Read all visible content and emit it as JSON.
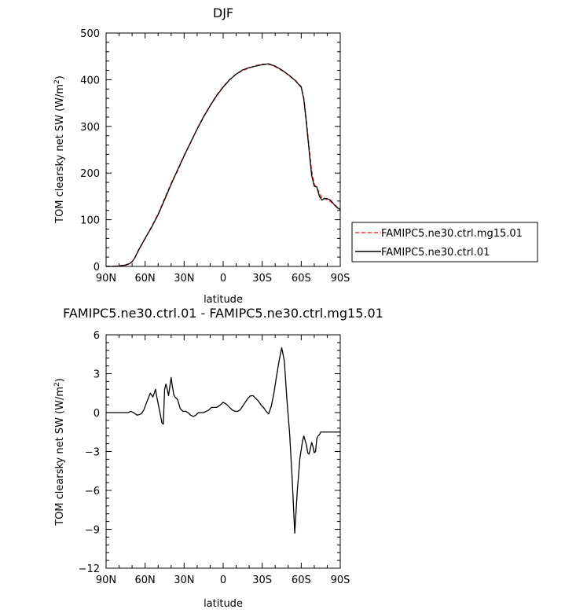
{
  "colors": {
    "ctrl_mg15": "#e8382c",
    "ctrl": "#000000"
  },
  "chart_data": [
    {
      "type": "line",
      "title": "DJF",
      "xlabel": "latitude",
      "ylabel": "TOM clearsky net SW (W/m",
      "ylabel_sup": "2",
      "ylabel_close": ")",
      "xlim": [
        90,
        -90
      ],
      "ylim": [
        0,
        500
      ],
      "xticks": [
        90,
        60,
        30,
        0,
        -30,
        -60,
        -90
      ],
      "xtick_labels": [
        "90N",
        "60N",
        "30N",
        "0",
        "30S",
        "60S",
        "90S"
      ],
      "yticks": [
        0,
        100,
        200,
        300,
        400,
        500
      ],
      "ytick_labels": [
        "0",
        "100",
        "200",
        "300",
        "400",
        "500"
      ],
      "legend": "right",
      "series": [
        {
          "name": "FAMIPC5.ne30.ctrl.mg15.01",
          "style": "dashed",
          "x": [
            90,
            85,
            80,
            75,
            72,
            70,
            68,
            65,
            62,
            60,
            55,
            50,
            45,
            40,
            35,
            30,
            25,
            20,
            15,
            10,
            5,
            0,
            -5,
            -10,
            -15,
            -20,
            -25,
            -30,
            -35,
            -40,
            -45,
            -50,
            -55,
            -60,
            -62,
            -64,
            -66,
            -68,
            -70,
            -72,
            -74,
            -76,
            -78,
            -80,
            -82,
            -84,
            -86,
            -88,
            -90
          ],
          "y": [
            0,
            0,
            1,
            3,
            6,
            10,
            18,
            35,
            50,
            60,
            85,
            112,
            145,
            178,
            205,
            238,
            265,
            295,
            320,
            345,
            367,
            385,
            400,
            412,
            420,
            425,
            430,
            433,
            433,
            428,
            420,
            410,
            400,
            385,
            360,
            310,
            255,
            205,
            176,
            168,
            158,
            145,
            145,
            143,
            140,
            136,
            131,
            127,
            124
          ]
        },
        {
          "name": "FAMIPC5.ne30.ctrl.01",
          "style": "solid",
          "x": [
            90,
            85,
            80,
            75,
            72,
            70,
            68,
            65,
            62,
            60,
            55,
            50,
            45,
            40,
            35,
            30,
            25,
            20,
            15,
            10,
            5,
            0,
            -5,
            -10,
            -15,
            -20,
            -25,
            -30,
            -35,
            -40,
            -45,
            -50,
            -55,
            -60,
            -62,
            -64,
            -66,
            -68,
            -70,
            -72,
            -74,
            -76,
            -78,
            -80,
            -82,
            -84,
            -86,
            -88,
            -90
          ],
          "y": [
            0,
            0,
            1,
            3,
            6,
            10,
            18,
            35,
            50,
            60,
            84,
            111,
            143,
            176,
            207,
            237,
            266,
            294,
            321,
            344,
            366,
            384,
            400,
            412,
            421,
            426,
            429,
            432,
            434,
            429,
            421,
            411,
            399,
            384,
            358,
            307,
            250,
            195,
            172,
            170,
            150,
            142,
            146,
            145,
            143,
            137,
            130,
            125,
            122
          ]
        }
      ]
    },
    {
      "type": "line",
      "title": "FAMIPC5.ne30.ctrl.01 - FAMIPC5.ne30.ctrl.mg15.01",
      "xlabel": "latitude",
      "ylabel": "TOM clearsky net SW (W/m",
      "ylabel_sup": "2",
      "ylabel_close": ")",
      "xlim": [
        90,
        -90
      ],
      "ylim": [
        -12,
        6
      ],
      "xticks": [
        90,
        60,
        30,
        0,
        -30,
        -60,
        -90
      ],
      "xtick_labels": [
        "90N",
        "60N",
        "30N",
        "0",
        "30S",
        "60S",
        "90S"
      ],
      "yticks": [
        -12,
        -9,
        -6,
        -3,
        0,
        3,
        6
      ],
      "ytick_labels": [
        "−12",
        "−9",
        "−6",
        "−3",
        "0",
        "3",
        "6"
      ],
      "series": [
        {
          "style": "solid",
          "x": [
            90,
            80,
            73,
            71,
            69,
            66,
            63,
            61,
            58,
            56,
            54,
            52,
            51,
            49,
            47,
            46,
            45,
            44,
            43,
            42,
            41,
            40,
            39,
            38,
            37,
            35,
            33,
            31,
            29,
            27,
            25,
            23,
            21,
            19,
            17,
            15,
            13,
            11,
            9,
            7,
            5,
            2,
            0,
            -3,
            -5,
            -7,
            -9,
            -11,
            -13,
            -15,
            -17,
            -19,
            -21,
            -23,
            -25,
            -27,
            -29,
            -31,
            -33,
            -35,
            -37,
            -39,
            -41,
            -43,
            -45,
            -47,
            -49,
            -51,
            -53,
            -55,
            -57,
            -59,
            -61,
            -62,
            -64,
            -65,
            -66,
            -67,
            -68,
            -69,
            -70,
            -71,
            -72,
            -73,
            -74,
            -75,
            -76,
            -77,
            -78,
            -79,
            -80,
            -81,
            -82,
            -83,
            -84,
            -85,
            -86,
            -87,
            -88,
            -89,
            -90
          ],
          "y": [
            0,
            0,
            0,
            0.1,
            0,
            -0.2,
            -0.1,
            0.2,
            1,
            1.5,
            1.2,
            1.8,
            1.2,
            0.2,
            -0.8,
            -0.9,
            1.8,
            2.2,
            1.8,
            1.3,
            2.0,
            2.7,
            2.0,
            1.4,
            1.2,
            1.0,
            0.3,
            0.1,
            0.1,
            0,
            -0.2,
            -0.3,
            -0.2,
            0,
            0,
            0,
            0.1,
            0.2,
            0.4,
            0.4,
            0.4,
            0.6,
            0.8,
            0.6,
            0.4,
            0.2,
            0.1,
            0.1,
            0.2,
            0.5,
            0.8,
            1.1,
            1.3,
            1.3,
            1.1,
            0.9,
            0.6,
            0.4,
            0.1,
            -0.1,
            0.5,
            1.5,
            2.8,
            4.0,
            5.0,
            4.0,
            1.0,
            -1.5,
            -5,
            -9.3,
            -6,
            -3.5,
            -2.2,
            -1.8,
            -2.5,
            -3.1,
            -3.2,
            -2.8,
            -2.3,
            -2.6,
            -3.1,
            -3.0,
            -2.0,
            -1.8,
            -1.7,
            -1.5,
            -1.5,
            -1.5,
            -1.5,
            -1.5,
            -1.5,
            -1.5,
            -1.5,
            -1.5,
            -1.5,
            -1.5,
            -1.5,
            -1.5,
            -1.5,
            -1.5,
            -1.5
          ]
        }
      ]
    }
  ]
}
